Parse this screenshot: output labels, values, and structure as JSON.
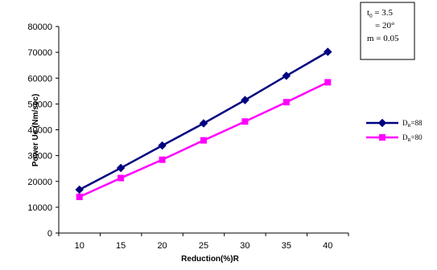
{
  "chart_data": {
    "type": "line",
    "title": "",
    "xlabel": "Reduction(%)R",
    "ylabel": "Power Ue (Nm/sec)",
    "x": [
      10,
      15,
      20,
      25,
      30,
      35,
      40
    ],
    "ylim": [
      0,
      80000
    ],
    "yticks": [
      "0",
      "10000",
      "20000",
      "30000",
      "40000",
      "50000",
      "60000",
      "70000",
      "80000"
    ],
    "grid": false,
    "legend_position": "right",
    "series": [
      {
        "name": "DR=88",
        "legend_main": "D",
        "legend_sub": "R",
        "legend_rest": "=88",
        "color": "#000080",
        "marker": "diamond",
        "values": [
          16800,
          25200,
          33900,
          42500,
          51500,
          60900,
          70200
        ]
      },
      {
        "name": "DR=80",
        "legend_main": "D",
        "legend_sub": "R",
        "legend_rest": "=80",
        "color": "#ff00ff",
        "marker": "square",
        "values": [
          14000,
          21300,
          28400,
          35900,
          43200,
          50700,
          58400
        ]
      }
    ],
    "annotation": {
      "line1_main": "t",
      "line1_sub": "0",
      "line1_rest": " = 3.5",
      "line2": "= 20°",
      "line3": "m = 0.05"
    }
  }
}
